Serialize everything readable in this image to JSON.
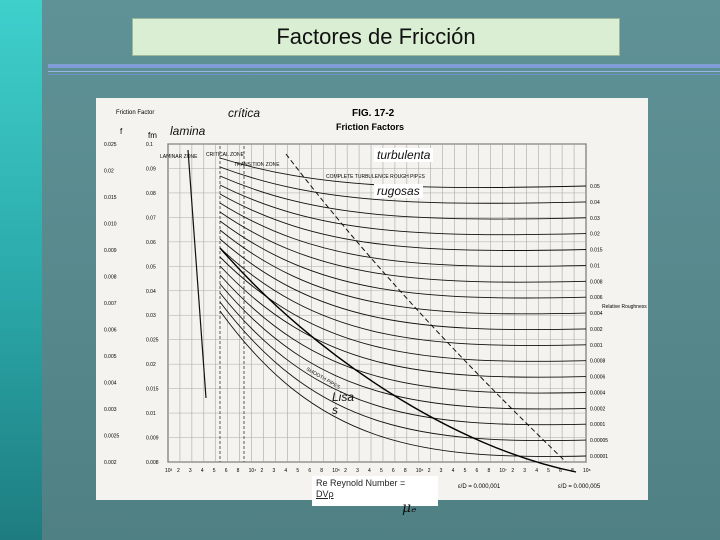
{
  "title": "Factores de Fricción",
  "chart": {
    "fig_title": "FIG. 17-2",
    "fig_subtitle": "Friction Factors",
    "friction_factor_label": "Friction Factor",
    "f_label": "f",
    "fm_label": "fm",
    "relative_roughness_label": "Relative Roughness",
    "laminar_zone": "LAMINAR ZONE",
    "critical_zone": "CRITICAL ZONE",
    "transition_zone": "TRANSITION ZONE",
    "complete_turbulence": "COMPLETE TURBULENCE ROUGH PIPES",
    "smooth_pipes": "SMOOTH PIPES",
    "f_ticks": [
      "0.025",
      "0.02",
      "0.015",
      "0.010",
      "0.009",
      "0.008",
      "0.007",
      "0.006",
      "0.005",
      "0.004",
      "0.003",
      "0.0025",
      "0.002"
    ],
    "fm_ticks": [
      "0.1",
      "0.09",
      "0.08",
      "0.07",
      "0.06",
      "0.05",
      "0.04",
      "0.03",
      "0.025",
      "0.02",
      "0.015",
      "0.01",
      "0.009",
      "0.008"
    ],
    "roughness_ticks": [
      "0.05",
      "0.04",
      "0.03",
      "0.02",
      "0.015",
      "0.01",
      "0.008",
      "0.006",
      "0.004",
      "0.002",
      "0.001",
      "0.0008",
      "0.0006",
      "0.0004",
      "0.0002",
      "0.0001",
      "0.00005",
      "0.00001"
    ],
    "re_ticks": [
      "10³",
      "2",
      "3",
      "4",
      "5",
      "6",
      "8",
      "10⁴",
      "2",
      "3",
      "4",
      "5",
      "6",
      "8",
      "10⁵",
      "2",
      "3",
      "4",
      "5",
      "6",
      "8",
      "10⁶",
      "2",
      "3",
      "4",
      "5",
      "6",
      "8",
      "10⁷",
      "2",
      "3",
      "4",
      "5",
      "6",
      "8",
      "10⁸"
    ],
    "ed_left": "ε/D = 0.000,001",
    "ed_right": "ε/D = 0.000,005"
  },
  "overlay": {
    "critica": "crítica",
    "lamina": "lamina",
    "turbulenta": "turbulenta",
    "rugosas": "rugosas",
    "lisas_1": "Lisa",
    "lisas_2": "s"
  },
  "formula": {
    "line1": "Re Reynold Number  =",
    "line2": "DVρ",
    "mu": "μₑ"
  }
}
